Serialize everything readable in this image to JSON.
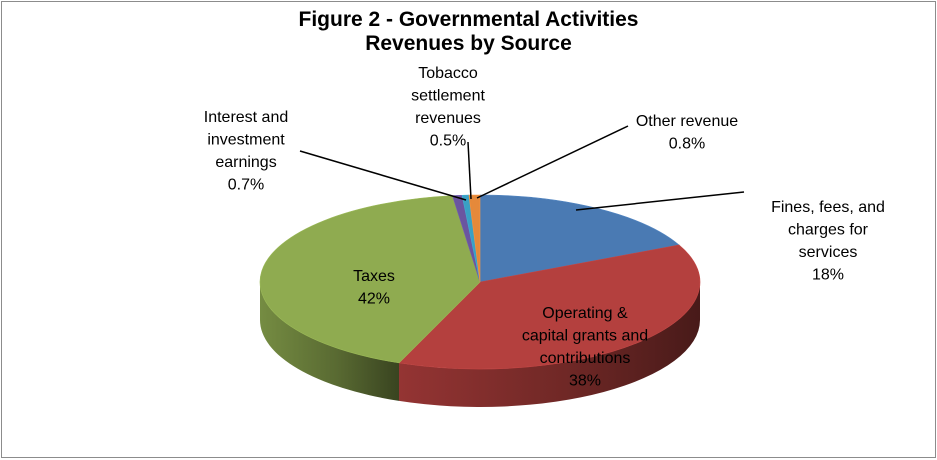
{
  "chart_data": {
    "type": "pie",
    "title": [
      "Figure 2 - Governmental Activities",
      "Revenues by Source"
    ],
    "style": "3d-exploded-none",
    "slices": [
      {
        "name": "Fines, fees, and charges for services",
        "value": 18,
        "label": [
          "Fines, fees, and",
          "charges for",
          "services",
          "18%"
        ],
        "color": "#4a7ab3"
      },
      {
        "name": "Operating & capital grants and contributions",
        "value": 38,
        "label": [
          "Operating &",
          "capital grants and",
          "contributions",
          "38%"
        ],
        "color": "#b4403e"
      },
      {
        "name": "Taxes",
        "value": 42,
        "label": [
          "Taxes",
          "42%"
        ],
        "color": "#8fab50"
      },
      {
        "name": "Interest and investment earnings",
        "value": 0.7,
        "label": [
          "Interest and",
          "investment",
          "earnings",
          "0.7%"
        ],
        "color": "#6a55a0"
      },
      {
        "name": "Tobacco settlement revenues",
        "value": 0.5,
        "label": [
          "Tobacco",
          "settlement",
          "revenues",
          "0.5%"
        ],
        "color": "#3aa0c4"
      },
      {
        "name": "Other revenue",
        "value": 0.8,
        "label": [
          "Other revenue",
          "0.8%"
        ],
        "color": "#e5893a"
      }
    ]
  }
}
